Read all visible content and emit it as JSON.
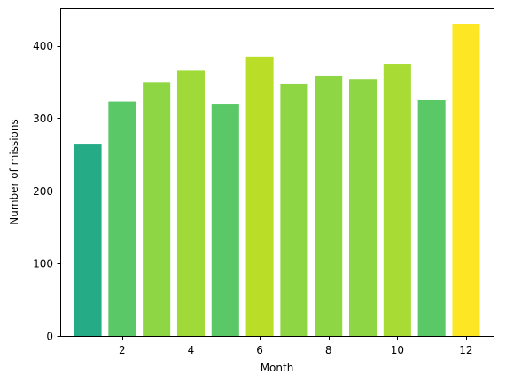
{
  "chart_data": {
    "type": "bar",
    "title": "",
    "xlabel": "Month",
    "ylabel": "Number of missions",
    "categories": [
      1,
      2,
      3,
      4,
      5,
      6,
      7,
      8,
      9,
      10,
      11,
      12
    ],
    "values": [
      265,
      323,
      349,
      366,
      320,
      385,
      347,
      358,
      354,
      375,
      325,
      430
    ],
    "bar_colors": [
      "#25ab85",
      "#5ac866",
      "#8ed643",
      "#a0da39",
      "#5ac866",
      "#bade28",
      "#8ed643",
      "#8ed643",
      "#8ed643",
      "#a8db34",
      "#5ac866",
      "#fde725"
    ],
    "xlim": [
      0.2,
      12.8
    ],
    "ylim": [
      0,
      452
    ],
    "xticks": [
      2,
      4,
      6,
      8,
      10,
      12
    ],
    "yticks": [
      0,
      100,
      200,
      300,
      400
    ],
    "grid": false,
    "legend": "none"
  }
}
